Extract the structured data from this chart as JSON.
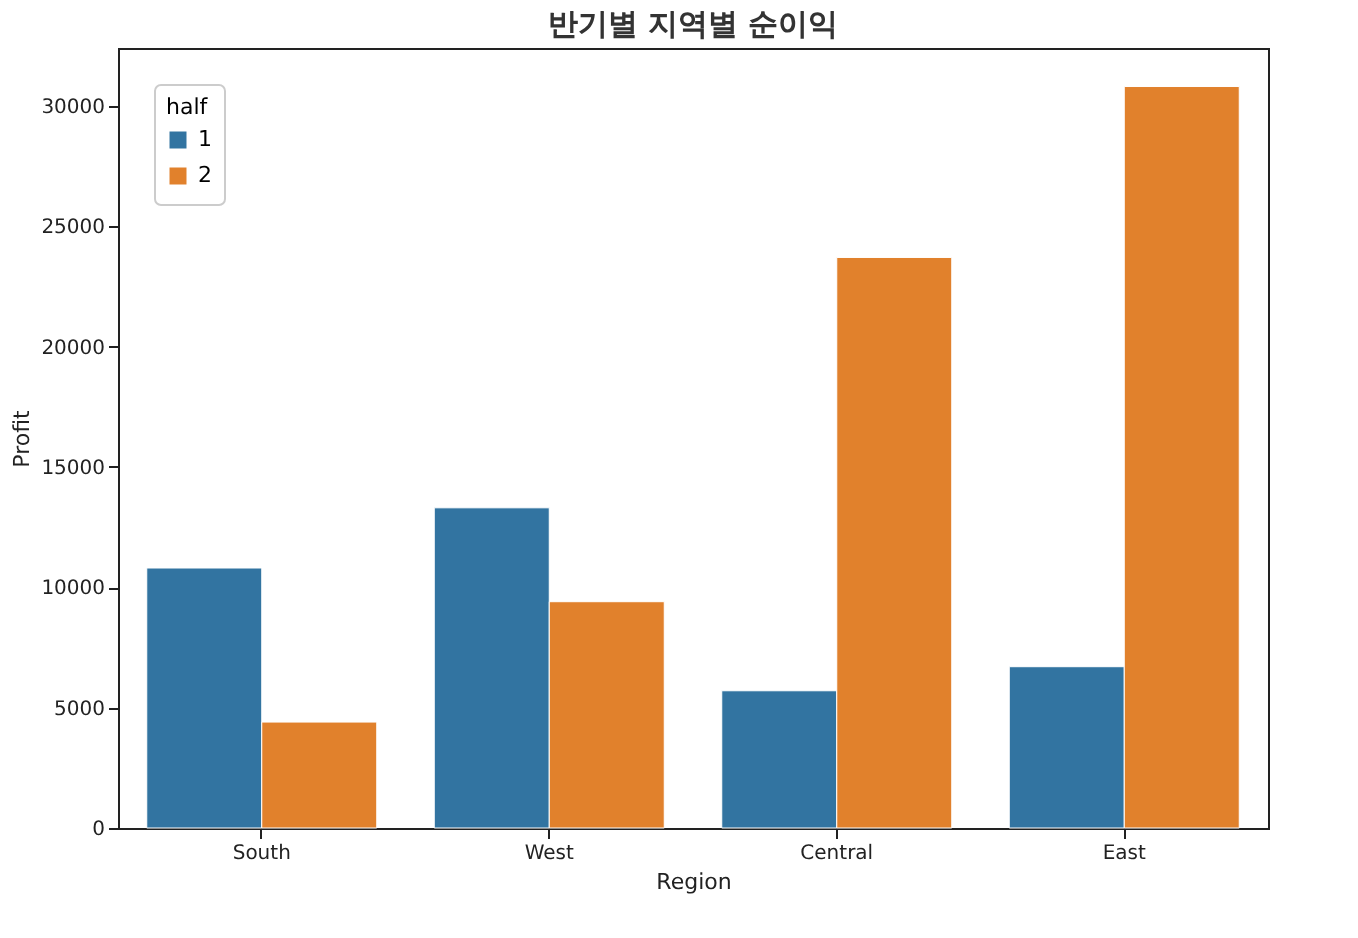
{
  "chart_data": {
    "type": "bar",
    "title": "반기별 지역별 순이익",
    "xlabel": "Region",
    "ylabel": "Profit",
    "legend_title": "half",
    "categories": [
      "South",
      "West",
      "Central",
      "East"
    ],
    "series": [
      {
        "name": "1",
        "color": "#3274a1",
        "values": [
          10800,
          13300,
          5700,
          6700
        ]
      },
      {
        "name": "2",
        "color": "#e1812c",
        "values": [
          4400,
          9400,
          23700,
          30800
        ]
      }
    ],
    "ylim": [
      0,
      32400
    ],
    "yticks": [
      0,
      5000,
      10000,
      15000,
      20000,
      25000,
      30000
    ],
    "grid": false,
    "legend": "top left"
  }
}
